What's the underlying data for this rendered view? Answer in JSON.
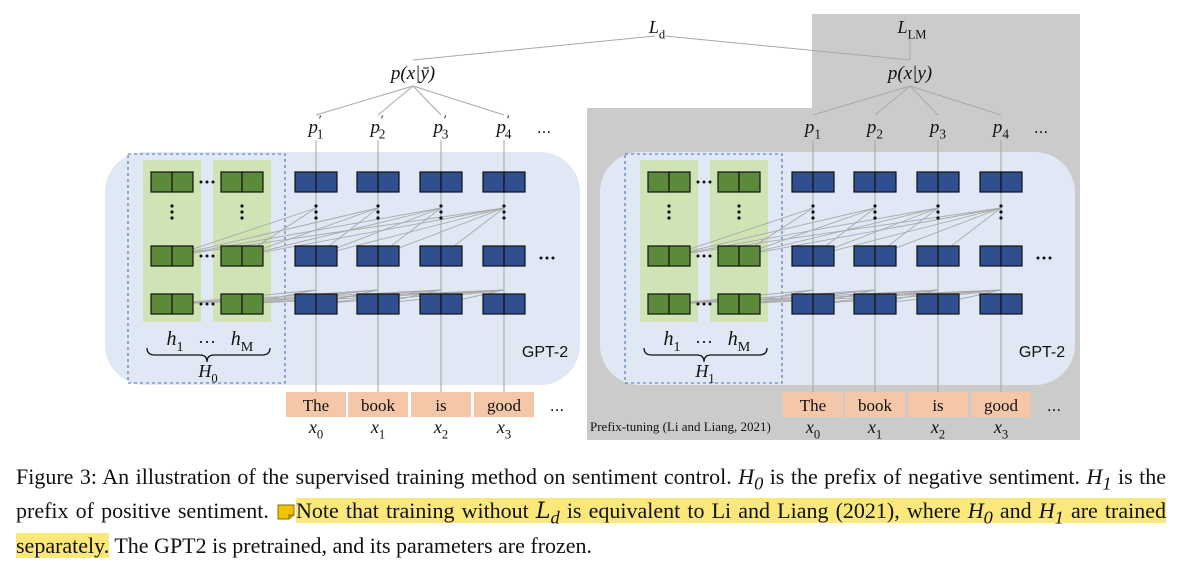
{
  "figure": {
    "loss_left": "L",
    "loss_left_sub": "d",
    "loss_right": "L",
    "loss_right_sub": "LM",
    "dist_left": "p(x|ȳ)",
    "dist_right": "p(x|y)",
    "probs_left": [
      {
        "b": "p",
        "s": "1",
        "prime": "′"
      },
      {
        "b": "p",
        "s": "2",
        "prime": "′"
      },
      {
        "b": "p",
        "s": "3",
        "prime": "′"
      },
      {
        "b": "p",
        "s": "4",
        "prime": "′"
      }
    ],
    "probs_right": [
      {
        "b": "p",
        "s": "1",
        "prime": ""
      },
      {
        "b": "p",
        "s": "2",
        "prime": ""
      },
      {
        "b": "p",
        "s": "3",
        "prime": ""
      },
      {
        "b": "p",
        "s": "4",
        "prime": ""
      }
    ],
    "ellipsis": "...",
    "ellipsis_h": "…",
    "model_label": "GPT-2",
    "prefix_h_left": "h",
    "prefix_h_left_sub": "1",
    "prefix_h_right": "h",
    "prefix_h_right_sub": "M",
    "prefix_left_name": "H",
    "prefix_left_sub": "0",
    "prefix_right_name": "H",
    "prefix_right_sub": "1",
    "tokens": [
      "The",
      "book",
      "is",
      "good"
    ],
    "token_vars": [
      {
        "b": "x",
        "s": "0"
      },
      {
        "b": "x",
        "s": "1"
      },
      {
        "b": "x",
        "s": "2"
      },
      {
        "b": "x",
        "s": "3"
      }
    ],
    "prefix_tuning_label": "Prefix-tuning (Li and Liang, 2021)",
    "colors": {
      "gpt_bg": "#dfe8f4",
      "prefix_bg": "#cfe3b5",
      "green_block": "#5b8a3a",
      "blue_block": "#2f4f8f",
      "token_bg": "#f4c7a8",
      "gray_region": "#cbcbcb",
      "highlight": "#fbe87a"
    }
  },
  "caption": {
    "p1": "Figure 3:  An illustration of the supervised training method on sentiment control.  ",
    "h0a": "H",
    "h0a_sub": "0",
    "p2": " is the prefix of negative sentiment.  ",
    "h1a": "H",
    "h1a_sub": "1",
    "p3": " is the prefix of positive sentiment. ",
    "hl1": "Note that training without ",
    "ld": "L",
    "ld_sub": "d",
    "hl2": " is equivalent to Li and Liang (2021), where ",
    "h0b": "H",
    "h0b_sub": "0",
    "hl3": " and ",
    "h1b": "H",
    "h1b_sub": "1",
    "hl4": " are trained separately.",
    "p4": " The GPT2 is pretrained, and its parameters are frozen."
  }
}
